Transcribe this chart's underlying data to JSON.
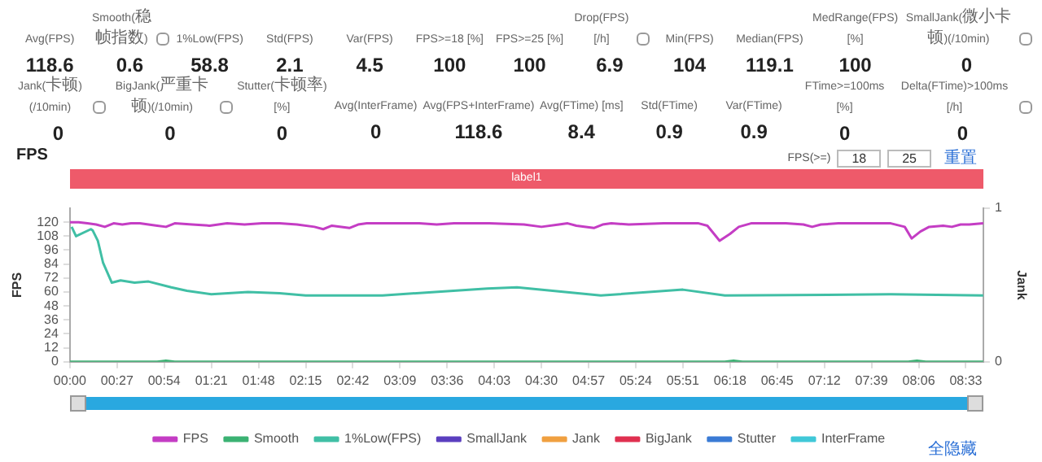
{
  "chart_data": [
    {
      "type": "other",
      "categories": [
        "Avg(FPS)",
        "Smooth(稳帧指数)",
        "1%Low(FPS)",
        "Std(FPS)",
        "Var(FPS)",
        "FPS>=18 [%]",
        "FPS>=25 [%]",
        "Drop(FPS) [/h]",
        "Min(FPS)",
        "Median(FPS)",
        "MedRange(FPS)[%]",
        "SmallJank(微小卡顿)(/10min)",
        "Jank(卡顿)(/10min)",
        "BigJank(严重卡顿)(/10min)",
        "Stutter(卡顿率) [%]",
        "Avg(InterFrame)",
        "Avg(FPS+InterFrame)",
        "Avg(FTime) [ms]",
        "Std(FTime)",
        "Var(FTime)",
        "FTime>=100ms [%]",
        "Delta(FTime)>100ms [/h]"
      ],
      "values": [
        118.6,
        0.6,
        58.8,
        2.1,
        4.5,
        100,
        100,
        6.9,
        104,
        119.1,
        100,
        0,
        0,
        0,
        0,
        0,
        118.6,
        8.4,
        0.9,
        0.9,
        0,
        0
      ],
      "data_labels": true
    },
    {
      "type": "line",
      "title": "FPS",
      "ylabel": "FPS",
      "y2label": "Jank",
      "annotations": [
        "FPS(>=)",
        "18",
        "25",
        "重置",
        "全隐藏",
        "label1"
      ],
      "xlim": [
        0,
        523
      ],
      "xticks": [
        {
          "value": 0,
          "label": "00:00"
        },
        {
          "value": 27,
          "label": "00:27"
        },
        {
          "value": 54,
          "label": "00:54"
        },
        {
          "value": 81,
          "label": "01:21"
        },
        {
          "value": 108,
          "label": "01:48"
        },
        {
          "value": 135,
          "label": "02:15"
        },
        {
          "value": 162,
          "label": "02:42"
        },
        {
          "value": 189,
          "label": "03:09"
        },
        {
          "value": 216,
          "label": "03:36"
        },
        {
          "value": 243,
          "label": "04:03"
        },
        {
          "value": 270,
          "label": "04:30"
        },
        {
          "value": 297,
          "label": "04:57"
        },
        {
          "value": 324,
          "label": "05:24"
        },
        {
          "value": 351,
          "label": "05:51"
        },
        {
          "value": 378,
          "label": "06:18"
        },
        {
          "value": 405,
          "label": "06:45"
        },
        {
          "value": 432,
          "label": "07:12"
        },
        {
          "value": 459,
          "label": "07:39"
        },
        {
          "value": 486,
          "label": "08:06"
        },
        {
          "value": 513,
          "label": "08:33"
        }
      ],
      "ylim": [
        0,
        132
      ],
      "yticks": [
        0,
        12,
        24,
        36,
        48,
        60,
        72,
        84,
        96,
        108,
        120
      ],
      "y2lim": [
        0,
        1
      ],
      "y2ticks": [
        0,
        1
      ],
      "grid": false,
      "legend": "bottom",
      "marker": "none",
      "line_style": "solid",
      "series": [
        {
          "name": "FPS",
          "color": "#c43dc4",
          "x": [
            0,
            5,
            10,
            15,
            20,
            25,
            30,
            35,
            40,
            50,
            55,
            60,
            70,
            80,
            90,
            100,
            110,
            120,
            130,
            140,
            145,
            150,
            160,
            165,
            170,
            180,
            200,
            210,
            220,
            240,
            260,
            270,
            280,
            285,
            290,
            300,
            305,
            310,
            320,
            340,
            360,
            365,
            372,
            378,
            383,
            390,
            410,
            420,
            425,
            430,
            440,
            470,
            478,
            482,
            487,
            492,
            500,
            505,
            510,
            515,
            523
          ],
          "values": [
            120,
            120,
            119,
            118,
            116,
            119,
            118,
            119,
            119,
            117,
            116,
            119,
            118,
            117,
            119,
            118,
            119,
            119,
            118,
            116,
            114,
            117,
            115,
            118,
            119,
            119,
            119,
            118,
            119,
            119,
            118,
            116,
            118,
            119,
            117,
            115,
            118,
            119,
            118,
            119,
            119,
            117,
            104,
            110,
            116,
            119,
            119,
            118,
            116,
            118,
            119,
            119,
            116,
            106,
            112,
            116,
            117,
            116,
            118,
            118,
            119
          ]
        },
        {
          "name": "Smooth",
          "color": "#3bb273",
          "x": [
            0,
            50,
            55,
            60,
            375,
            380,
            385,
            480,
            485,
            490,
            523
          ],
          "values": [
            0,
            0,
            1,
            0,
            0,
            1,
            0,
            0,
            1,
            0,
            0
          ]
        },
        {
          "name": "1%Low(FPS)",
          "color": "#40bfa5",
          "x": [
            1,
            3.5,
            12,
            13,
            16,
            19,
            24,
            29,
            37,
            45,
            58,
            67,
            81,
            102,
            120,
            135,
            179,
            209,
            239,
            256,
            304,
            351,
            375,
            470,
            523
          ],
          "values": [
            116,
            108,
            114,
            113,
            104,
            85,
            68,
            70,
            68,
            69,
            64,
            61,
            58,
            60,
            59,
            57,
            57,
            60,
            63,
            64,
            57,
            62,
            57,
            58,
            57
          ]
        },
        {
          "name": "SmallJank",
          "color": "#5b3fbf"
        },
        {
          "name": "Jank",
          "color": "#f0a040"
        },
        {
          "name": "BigJank",
          "color": "#e03050"
        },
        {
          "name": "Stutter",
          "color": "#3a7bd5"
        },
        {
          "name": "InterFrame",
          "color": "#40c8d8"
        }
      ]
    }
  ]
}
